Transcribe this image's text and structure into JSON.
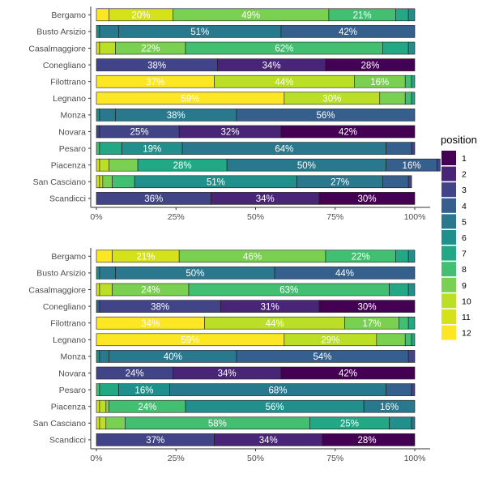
{
  "palette": {
    "1": "#440154",
    "2": "#482576",
    "3": "#414487",
    "4": "#35608D",
    "5": "#2A788E",
    "6": "#21908C",
    "7": "#22A884",
    "8": "#43BF71",
    "9": "#7AD151",
    "10": "#BBDF27",
    "11": "#D5E21A",
    "12": "#FDE725"
  },
  "legend": {
    "title": "position",
    "items": [
      "1",
      "2",
      "3",
      "4",
      "5",
      "6",
      "7",
      "8",
      "9",
      "10",
      "11",
      "12"
    ]
  },
  "chart_data": [
    {
      "type": "bar",
      "orientation": "horizontal",
      "stacked": "percent",
      "categories": [
        "Bergamo",
        "Busto Arsizio",
        "Casalmaggiore",
        "Conegliano",
        "Filottrano",
        "Legnano",
        "Monza",
        "Novara",
        "Pesaro",
        "Piacenza",
        "San Casciano",
        "Scandicci"
      ],
      "x_ticks": [
        "0%",
        "25%",
        "50%",
        "75%",
        "100%"
      ],
      "xlim": [
        0,
        1
      ],
      "rows": [
        {
          "name": "Bergamo",
          "segments": [
            [
              12,
              0.04
            ],
            [
              11,
              0.2,
              "20%"
            ],
            [
              9,
              0.49,
              "49%"
            ],
            [
              8,
              0.21,
              "21%"
            ],
            [
              7,
              0.04
            ],
            [
              6,
              0.02
            ]
          ]
        },
        {
          "name": "Busto Arsizio",
          "segments": [
            [
              6,
              0.01
            ],
            [
              5,
              0.06
            ],
            [
              5,
              0.51,
              "51%"
            ],
            [
              4,
              0.42,
              "42%"
            ]
          ]
        },
        {
          "name": "Casalmaggiore",
          "segments": [
            [
              11,
              0.01
            ],
            [
              10,
              0.05
            ],
            [
              9,
              0.22,
              "22%"
            ],
            [
              8,
              0.62,
              "62%"
            ],
            [
              7,
              0.08
            ],
            [
              6,
              0.02
            ]
          ]
        },
        {
          "name": "Conegliano",
          "segments": [
            [
              3,
              0.38,
              "38%"
            ],
            [
              2,
              0.34,
              "34%"
            ],
            [
              1,
              0.28,
              "28%"
            ]
          ]
        },
        {
          "name": "Filottrano",
          "segments": [
            [
              12,
              0.37,
              "37%"
            ],
            [
              10,
              0.44,
              "44%"
            ],
            [
              9,
              0.16,
              "16%"
            ],
            [
              8,
              0.02
            ],
            [
              7,
              0.01
            ]
          ]
        },
        {
          "name": "Legnano",
          "segments": [
            [
              12,
              0.59,
              "59%"
            ],
            [
              10,
              0.3,
              "30%"
            ],
            [
              9,
              0.08
            ],
            [
              8,
              0.02
            ],
            [
              7,
              0.01
            ]
          ]
        },
        {
          "name": "Monza",
          "segments": [
            [
              6,
              0.01
            ],
            [
              5,
              0.05
            ],
            [
              5,
              0.38,
              "38%"
            ],
            [
              4,
              0.56,
              "56%"
            ]
          ]
        },
        {
          "name": "Novara",
          "segments": [
            [
              3,
              0.01
            ],
            [
              3,
              0.25,
              "25%"
            ],
            [
              2,
              0.32,
              "32%"
            ],
            [
              1,
              0.42,
              "42%"
            ]
          ]
        },
        {
          "name": "Pesaro",
          "segments": [
            [
              8,
              0.01
            ],
            [
              7,
              0.07
            ],
            [
              6,
              0.19,
              "19%"
            ],
            [
              5,
              0.64,
              "64%"
            ],
            [
              4,
              0.08
            ],
            [
              3,
              0.01
            ]
          ]
        },
        {
          "name": "Piacenza",
          "segments": [
            [
              11,
              0.01
            ],
            [
              10,
              0.03
            ],
            [
              9,
              0.09
            ],
            [
              7,
              0.28,
              "28%"
            ],
            [
              5,
              0.5,
              "50%"
            ],
            [
              4,
              0.16,
              "16%"
            ],
            [
              3,
              0.01
            ]
          ]
        },
        {
          "name": "San Casciano",
          "segments": [
            [
              11,
              0.01
            ],
            [
              10,
              0.01
            ],
            [
              9,
              0.03
            ],
            [
              8,
              0.07
            ],
            [
              6,
              0.51,
              "51%"
            ],
            [
              5,
              0.27,
              "27%"
            ],
            [
              4,
              0.08
            ],
            [
              3,
              0.01
            ]
          ]
        },
        {
          "name": "Scandicci",
          "segments": [
            [
              3,
              0.36,
              "36%"
            ],
            [
              2,
              0.34,
              "34%"
            ],
            [
              1,
              0.3,
              "30%"
            ]
          ]
        }
      ]
    },
    {
      "type": "bar",
      "orientation": "horizontal",
      "stacked": "percent",
      "categories": [
        "Bergamo",
        "Busto Arsizio",
        "Casalmaggiore",
        "Conegliano",
        "Filottrano",
        "Legnano",
        "Monza",
        "Novara",
        "Pesaro",
        "Piacenza",
        "San Casciano",
        "Scandicci"
      ],
      "x_ticks": [
        "0%",
        "25%",
        "50%",
        "75%",
        "100%"
      ],
      "xlim": [
        0,
        1
      ],
      "rows": [
        {
          "name": "Bergamo",
          "segments": [
            [
              12,
              0.05
            ],
            [
              11,
              0.21,
              "21%"
            ],
            [
              9,
              0.46,
              "46%"
            ],
            [
              8,
              0.22,
              "22%"
            ],
            [
              7,
              0.04
            ],
            [
              6,
              0.02
            ]
          ]
        },
        {
          "name": "Busto Arsizio",
          "segments": [
            [
              6,
              0.01
            ],
            [
              5,
              0.05
            ],
            [
              5,
              0.5,
              "50%"
            ],
            [
              4,
              0.44,
              "44%"
            ]
          ]
        },
        {
          "name": "Casalmaggiore",
          "segments": [
            [
              11,
              0.01
            ],
            [
              10,
              0.04
            ],
            [
              9,
              0.24,
              "24%"
            ],
            [
              8,
              0.63,
              "63%"
            ],
            [
              7,
              0.06
            ],
            [
              6,
              0.02
            ]
          ]
        },
        {
          "name": "Conegliano",
          "segments": [
            [
              4,
              0.01
            ],
            [
              3,
              0.38,
              "38%"
            ],
            [
              2,
              0.31,
              "31%"
            ],
            [
              1,
              0.3,
              "30%"
            ]
          ]
        },
        {
          "name": "Filottrano",
          "segments": [
            [
              12,
              0.34,
              "34%"
            ],
            [
              10,
              0.44,
              "44%"
            ],
            [
              9,
              0.17,
              "17%"
            ],
            [
              8,
              0.03
            ],
            [
              7,
              0.02
            ]
          ]
        },
        {
          "name": "Legnano",
          "segments": [
            [
              12,
              0.59,
              "59%"
            ],
            [
              10,
              0.29,
              "29%"
            ],
            [
              9,
              0.09
            ],
            [
              8,
              0.02
            ],
            [
              7,
              0.01
            ]
          ]
        },
        {
          "name": "Monza",
          "segments": [
            [
              6,
              0.01
            ],
            [
              5,
              0.03
            ],
            [
              5,
              0.4,
              "40%"
            ],
            [
              4,
              0.54,
              "54%"
            ],
            [
              3,
              0.02
            ]
          ]
        },
        {
          "name": "Novara",
          "segments": [
            [
              3,
              0.24,
              "24%"
            ],
            [
              2,
              0.34,
              "34%"
            ],
            [
              1,
              0.42,
              "42%"
            ]
          ]
        },
        {
          "name": "Pesaro",
          "segments": [
            [
              8,
              0.01
            ],
            [
              7,
              0.06
            ],
            [
              6,
              0.16,
              "16%"
            ],
            [
              5,
              0.68,
              "68%"
            ],
            [
              4,
              0.08
            ],
            [
              3,
              0.01
            ]
          ]
        },
        {
          "name": "Piacenza",
          "segments": [
            [
              11,
              0.01
            ],
            [
              10,
              0.02
            ],
            [
              9,
              0.01
            ],
            [
              8,
              0.24,
              "24%"
            ],
            [
              6,
              0.56,
              "56%"
            ],
            [
              5,
              0.16,
              "16%"
            ]
          ]
        },
        {
          "name": "San Casciano",
          "segments": [
            [
              11,
              0.01
            ],
            [
              10,
              0.02
            ],
            [
              9,
              0.06
            ],
            [
              8,
              0.58,
              "58%"
            ],
            [
              7,
              0.25,
              "25%"
            ],
            [
              6,
              0.07
            ],
            [
              5,
              0.01
            ]
          ]
        },
        {
          "name": "Scandicci",
          "segments": [
            [
              3,
              0.37,
              "37%"
            ],
            [
              2,
              0.34,
              "34%"
            ],
            [
              1,
              0.28,
              "28%"
            ],
            [
              1,
              0.01
            ]
          ]
        }
      ]
    }
  ]
}
